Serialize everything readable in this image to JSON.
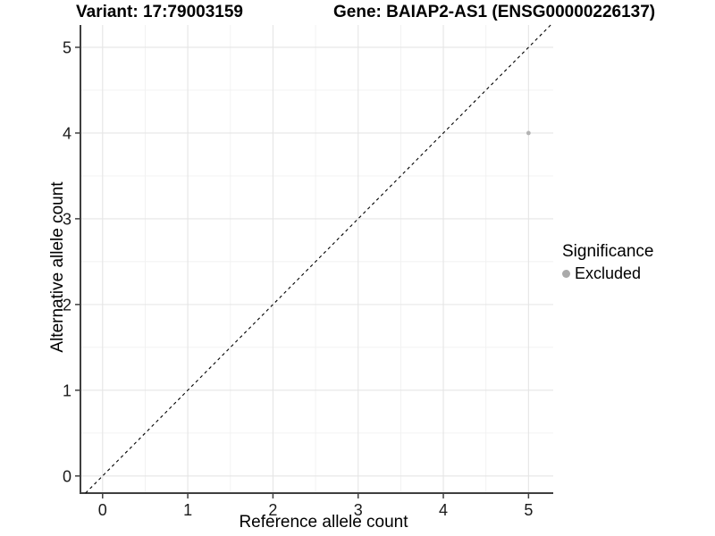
{
  "chart_data": {
    "type": "scatter",
    "title_left": "Variant: 17:79003159",
    "title_right": "Gene: BAIAP2-AS1 (ENSG00000226137)",
    "xlabel": "Reference allele count",
    "ylabel": "Alternative allele count",
    "xlim": [
      -0.26,
      5.29
    ],
    "ylim": [
      -0.2,
      5.26
    ],
    "x_ticks": [
      0,
      1,
      2,
      3,
      4,
      5
    ],
    "y_ticks": [
      0,
      1,
      2,
      3,
      4,
      5
    ],
    "minor_step": 0.5,
    "grid": true,
    "points": [
      {
        "x": 5,
        "y": 4,
        "series": "Excluded"
      }
    ],
    "reference_line": {
      "type": "identity",
      "style": "dashed",
      "color": "#000000"
    },
    "legend": {
      "title": "Significance",
      "position": "right",
      "items": [
        {
          "label": "Excluded",
          "color": "#aaaaaa"
        }
      ]
    },
    "colors": {
      "excluded_point": "#b3b3b3",
      "axis_line": "#3f3f3f",
      "tick_label": "#1a1a1a",
      "grid_major": "#e5e5e5",
      "grid_minor": "#f1f1f1",
      "background": "#ffffff"
    }
  }
}
